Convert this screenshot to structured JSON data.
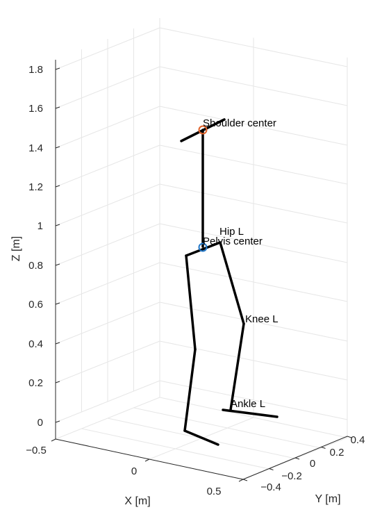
{
  "chart_data": {
    "type": "line",
    "title": "",
    "xlabel": "X [m]",
    "ylabel": "Y [m]",
    "zlabel": "Z [m]",
    "grid": true,
    "ticks": {
      "x": [
        "−0.5",
        "0",
        "0.5"
      ],
      "y": [
        "−0.4",
        "−0.2",
        "0",
        "0.2",
        "0.4"
      ],
      "z": [
        "0",
        "0.2",
        "0.4",
        "0.6",
        "0.8",
        "1",
        "1.2",
        "1.4",
        "1.6",
        "1.8"
      ]
    },
    "zlim": [
      -0.05,
      1.85
    ],
    "segments": [
      {
        "name": "torso",
        "color": "#000000"
      },
      {
        "name": "shoulder-line",
        "color": "#000000"
      },
      {
        "name": "pelvis-line",
        "color": "#000000"
      },
      {
        "name": "thigh-left",
        "color": "#000000"
      },
      {
        "name": "shank-left",
        "color": "#000000"
      },
      {
        "name": "foot-left",
        "color": "#000000"
      },
      {
        "name": "thigh-right",
        "color": "#000000"
      },
      {
        "name": "shank-right",
        "color": "#000000"
      },
      {
        "name": "foot-right",
        "color": "#000000"
      }
    ],
    "markers": [
      {
        "name": "shoulder-center",
        "color": "#e0622a"
      },
      {
        "name": "pelvis-center",
        "color": "#2378c8"
      }
    ],
    "annotations": [
      "Shoulder center",
      "Hip L",
      "Pelvis center",
      "Knee L",
      "Ankle L"
    ]
  }
}
